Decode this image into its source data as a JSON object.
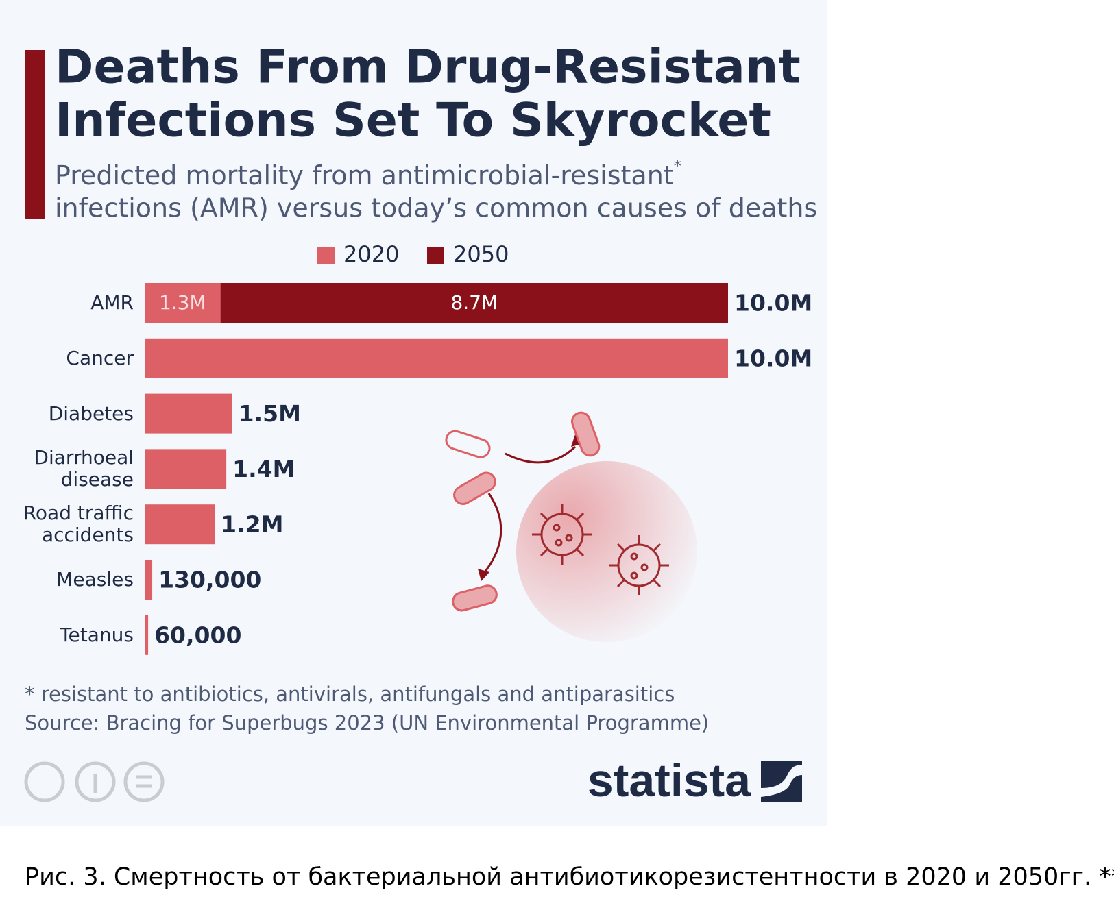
{
  "chart_data": {
    "type": "stacked_barh",
    "title": [
      "Deaths From Drug-Resistant",
      "Infections Set To Skyrocket"
    ],
    "subtitle": [
      "Predicted mortality from antimicrobial-resistant",
      "infections (AMR) versus today’s common causes of deaths"
    ],
    "subtitle_mark": "*",
    "categories": [
      "AMR",
      "Cancer",
      "Diabetes",
      "Diarrhoeal disease",
      "Road traffic accidents",
      "Measles",
      "Tetanus"
    ],
    "series": [
      {
        "name": "2020",
        "color": "#dc6065",
        "values": [
          1300000,
          10000000,
          1500000,
          1400000,
          1200000,
          130000,
          60000
        ],
        "value_labels": [
          "1.3M",
          null,
          null,
          null,
          null,
          null,
          null
        ]
      },
      {
        "name": "2050",
        "color": "#8a1019",
        "values": [
          8700000,
          null,
          null,
          null,
          null,
          null,
          null
        ],
        "value_labels": [
          "8.7M",
          null,
          null,
          null,
          null,
          null,
          null
        ]
      }
    ],
    "totals": [
      10000000,
      10000000,
      1500000,
      1400000,
      1200000,
      130000,
      60000
    ],
    "total_labels": [
      "10.0M",
      "10.0M",
      "1.5M",
      "1.4M",
      "1.2M",
      "130,000",
      "60,000"
    ],
    "xlim": [
      0,
      10000000
    ],
    "footnote": "* resistant to antibiotics, antivirals, antifungals and antiparasitics",
    "source": "Source: Bracing for Superbugs 2023 (UN Environmental Programme)",
    "brand": "statista",
    "caption": "Рис. 3. Смертность от бактериальной антибиотикорезистентности в 2020 и 2050гг. **"
  }
}
